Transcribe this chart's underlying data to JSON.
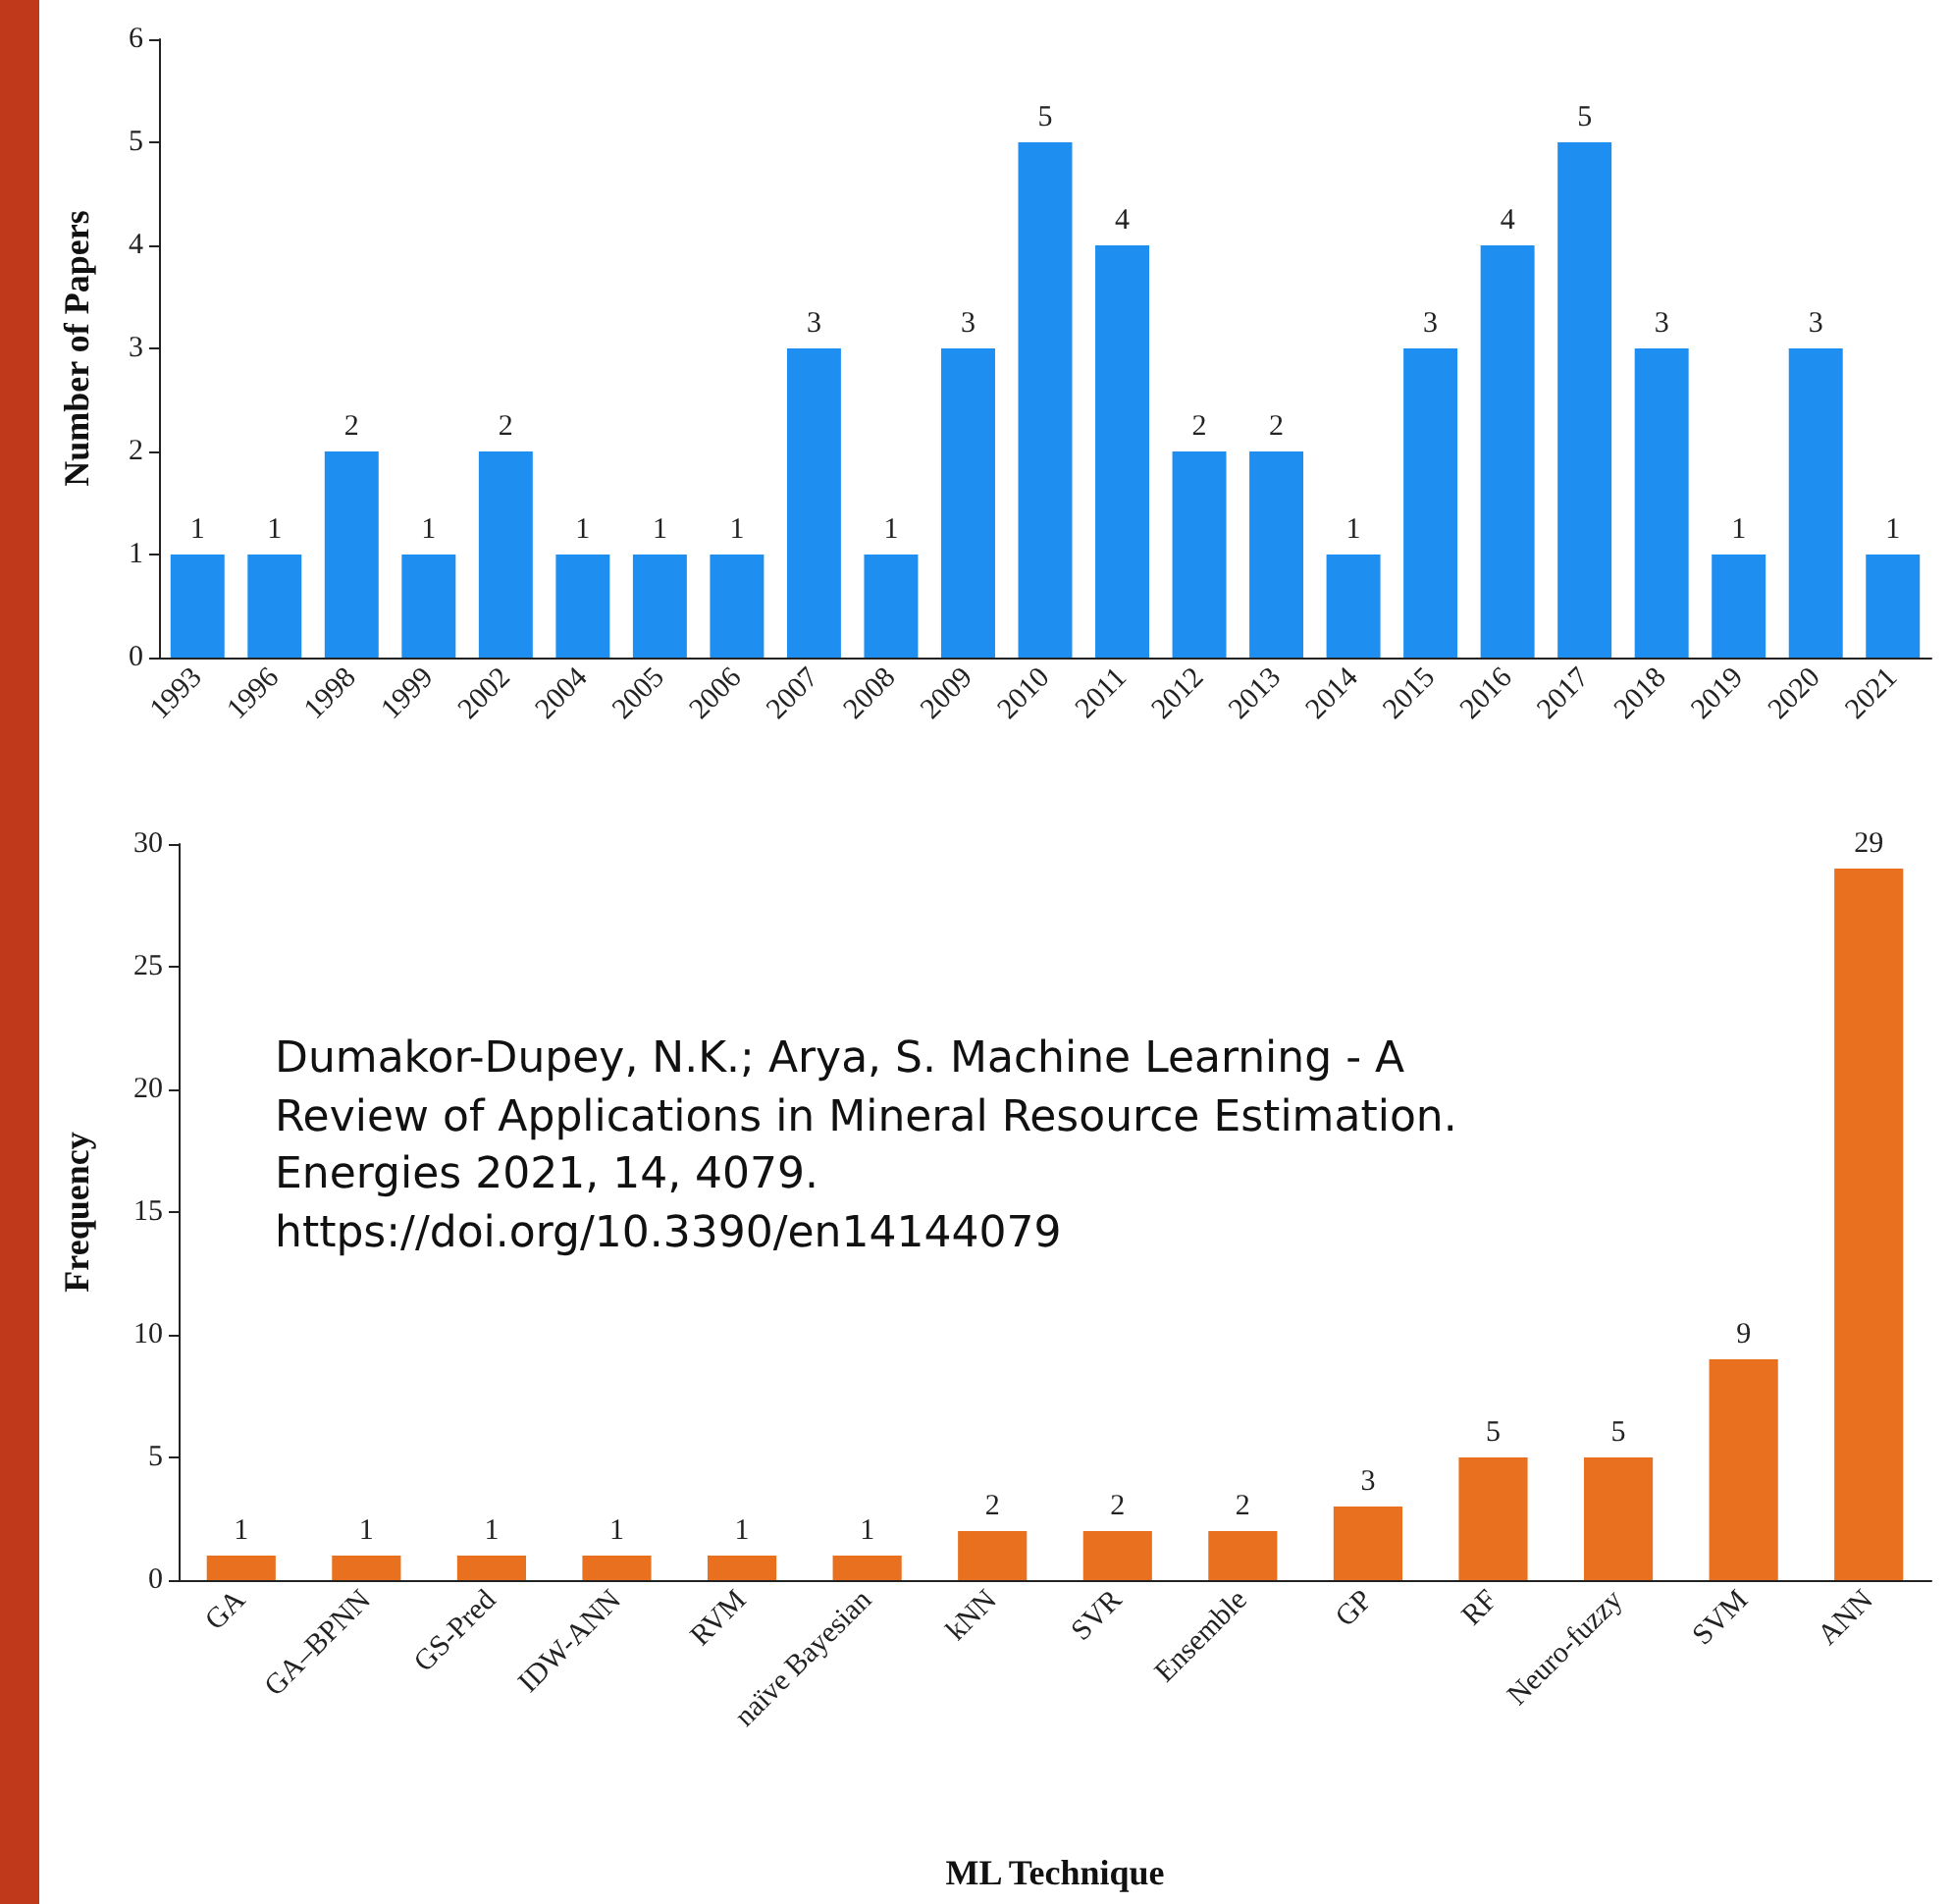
{
  "chart_data": [
    {
      "type": "bar",
      "ylabel": "Number of Papers",
      "categories": [
        "1993",
        "1996",
        "1998",
        "1999",
        "2002",
        "2004",
        "2005",
        "2006",
        "2007",
        "2008",
        "2009",
        "2010",
        "2011",
        "2012",
        "2013",
        "2014",
        "2015",
        "2016",
        "2017",
        "2018",
        "2019",
        "2020",
        "2021"
      ],
      "values": [
        1,
        1,
        2,
        1,
        2,
        1,
        1,
        1,
        3,
        1,
        3,
        5,
        4,
        2,
        2,
        1,
        3,
        4,
        5,
        3,
        1,
        3,
        1
      ],
      "color": "#1e8ff0",
      "ylim": [
        0,
        6
      ],
      "yticks": [
        0,
        1,
        2,
        3,
        4,
        5,
        6
      ],
      "data_labels": true
    },
    {
      "type": "bar",
      "ylabel": "Frequency",
      "xlabel": "ML Technique",
      "categories": [
        "GA",
        "GA–BPNN",
        "GS-Pred",
        "IDW-ANN",
        "RVM",
        "naïve Bayesian",
        "kNN",
        "SVR",
        "Ensemble",
        "GP",
        "RF",
        "Neuro-fuzzy",
        "SVM",
        "ANN"
      ],
      "values": [
        1,
        1,
        1,
        1,
        1,
        1,
        2,
        2,
        2,
        3,
        5,
        5,
        9,
        29
      ],
      "color": "#e8701e",
      "ylim": [
        0,
        30
      ],
      "yticks": [
        0,
        5,
        10,
        15,
        20,
        25,
        30
      ],
      "data_labels": true,
      "annotations": [
        "Dumakor-Dupey, N.K.; Arya, S. Machine Learning - A Review of Applications in Mineral Resource Estimation. Energies 2021, 14, 4079. https://doi.org/10.3390/en14144079"
      ]
    }
  ]
}
